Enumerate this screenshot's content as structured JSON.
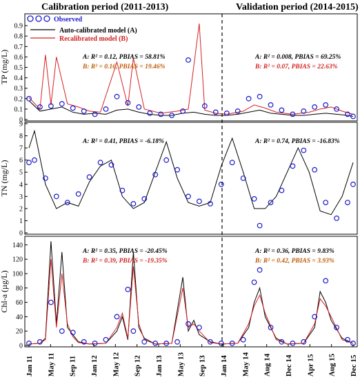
{
  "title_left": "Calibration period (2011-2013)",
  "title_right": "Validation period (2014-2015)",
  "legend": {
    "observed": "Observed",
    "auto": "Auto-calibrated model (A)",
    "recal": "Recalibrated model (B)"
  },
  "colors": {
    "observed": "#1a1acc",
    "auto": "#000000",
    "recal": "#d42020"
  },
  "x_ticks": [
    "Jan 11",
    "May 11",
    "Sep 11",
    "Jan 12",
    "May 12",
    "Sep 12",
    "Jan 13",
    "May 13",
    "Sep 13",
    "Jan 14",
    "May 14",
    "Aug 14",
    "Dec 14",
    "Apr 15",
    "Aug 15",
    "Dec 15"
  ],
  "panels": {
    "tp": {
      "ylabel": "TP (mg/L)",
      "ylim": [
        0,
        1.0
      ],
      "yticks": [
        "0",
        "0.1",
        "0.2",
        "0.3",
        "0.4",
        "0.5",
        "0.6",
        "0.7",
        "0.8",
        "0.9"
      ],
      "cal_a": "A: R² = 0.12, PBIAS = 58.81%",
      "cal_b": "B: R² = 0.16, PBIAS = 19.46%",
      "val_a": "A: R² = 0.008, PBIAS = 69.25%",
      "val_b": "B: R² = 0.07, PBIAS = 22.63%"
    },
    "tn": {
      "ylabel": "TN (mg/L)",
      "ylim": [
        0,
        9
      ],
      "yticks": [
        "0",
        "1",
        "2",
        "3",
        "4",
        "5",
        "6",
        "7",
        "8",
        "9"
      ],
      "cal_a": "A: R² = 0.41, PBIAS = -6.18%",
      "val_a": "A: R² = 0.74, PBIAS = -16.83%"
    },
    "chla": {
      "ylabel": "Chl-a (µg/L)",
      "ylim": [
        0,
        150
      ],
      "yticks": [
        "0",
        "20",
        "40",
        "60",
        "80",
        "100",
        "120",
        "140"
      ],
      "cal_a": "A: R² = 0.35, PBIAS = -20.45%",
      "cal_b": "B: R² = 0.39, PBIAS = -19.35%",
      "val_a": "A: R² = 0.36, PBIAS = 9.83%",
      "val_b": "B: R² = 0.42, PBIAS = 3.93%"
    }
  },
  "chart_data": [
    {
      "type": "line",
      "title": "Calibration period (2011-2013) / Validation period (2014-2015)",
      "ylabel": "TP (mg/L)",
      "ylim": [
        0,
        1.0
      ],
      "x_range": [
        "2011-01",
        "2015-12"
      ],
      "period_split": "2014-01",
      "series": [
        {
          "name": "Observed",
          "kind": "scatter",
          "x": [
            "2011-01",
            "2011-03",
            "2011-05",
            "2011-07",
            "2011-09",
            "2011-11",
            "2012-01",
            "2012-03",
            "2012-05",
            "2012-07",
            "2012-09",
            "2012-11",
            "2013-01",
            "2013-03",
            "2013-05",
            "2013-06",
            "2013-09",
            "2013-11",
            "2014-01",
            "2014-03",
            "2014-05",
            "2014-07",
            "2014-09",
            "2014-11",
            "2015-01",
            "2015-03",
            "2015-05",
            "2015-07",
            "2015-09",
            "2015-11",
            "2015-12"
          ],
          "y": [
            0.2,
            0.12,
            0.13,
            0.15,
            0.11,
            0.08,
            0.05,
            0.1,
            0.22,
            0.16,
            0.12,
            0.06,
            0.05,
            0.04,
            0.08,
            0.57,
            0.13,
            0.07,
            0.06,
            0.08,
            0.2,
            0.22,
            0.14,
            0.09,
            0.05,
            0.08,
            0.12,
            0.14,
            0.1,
            0.05,
            0.03
          ]
        },
        {
          "name": "Auto-calibrated model (A)",
          "kind": "line",
          "x": [
            "2011-01",
            "2011-03",
            "2011-05",
            "2011-07",
            "2011-09",
            "2011-11",
            "2012-01",
            "2012-03",
            "2012-05",
            "2012-07",
            "2012-09",
            "2012-11",
            "2013-01",
            "2013-03",
            "2013-05",
            "2013-07",
            "2013-09",
            "2013-11",
            "2014-01",
            "2014-03",
            "2014-05",
            "2014-07",
            "2014-09",
            "2014-11",
            "2015-01",
            "2015-03",
            "2015-05",
            "2015-07",
            "2015-09",
            "2015-11",
            "2015-12"
          ],
          "y": [
            0.18,
            0.08,
            0.1,
            0.12,
            0.07,
            0.05,
            0.06,
            0.05,
            0.09,
            0.1,
            0.07,
            0.05,
            0.04,
            0.04,
            0.06,
            0.07,
            0.05,
            0.04,
            0.04,
            0.05,
            0.07,
            0.09,
            0.06,
            0.05,
            0.04,
            0.04,
            0.05,
            0.06,
            0.05,
            0.04,
            0.03
          ]
        },
        {
          "name": "Recalibrated model (B)",
          "kind": "line",
          "x": [
            "2011-01",
            "2011-03",
            "2011-04",
            "2011-05",
            "2011-06",
            "2011-08",
            "2011-10",
            "2011-12",
            "2012-02",
            "2012-05",
            "2012-07",
            "2012-08",
            "2012-10",
            "2013-01",
            "2013-04",
            "2013-06",
            "2013-08",
            "2013-09",
            "2013-11",
            "2014-01",
            "2014-04",
            "2014-06",
            "2014-08",
            "2014-10",
            "2015-01",
            "2015-04",
            "2015-06",
            "2015-08",
            "2015-10",
            "2015-12"
          ],
          "y": [
            0.21,
            0.1,
            0.62,
            0.14,
            0.6,
            0.15,
            0.12,
            0.08,
            0.07,
            0.55,
            0.13,
            0.59,
            0.1,
            0.06,
            0.08,
            0.1,
            0.92,
            0.09,
            0.06,
            0.05,
            0.08,
            0.14,
            0.11,
            0.07,
            0.05,
            0.07,
            0.1,
            0.12,
            0.08,
            0.05
          ]
        }
      ]
    },
    {
      "type": "line",
      "ylabel": "TN (mg/L)",
      "ylim": [
        0,
        9
      ],
      "x_range": [
        "2011-01",
        "2015-12"
      ],
      "series": [
        {
          "name": "Observed",
          "kind": "scatter",
          "x": [
            "2011-01",
            "2011-02",
            "2011-04",
            "2011-06",
            "2011-08",
            "2011-10",
            "2011-12",
            "2012-02",
            "2012-04",
            "2012-06",
            "2012-08",
            "2012-10",
            "2012-12",
            "2013-02",
            "2013-04",
            "2013-06",
            "2013-08",
            "2013-10",
            "2013-12",
            "2014-02",
            "2014-04",
            "2014-06",
            "2014-07",
            "2014-09",
            "2014-11",
            "2015-01",
            "2015-03",
            "2015-05",
            "2015-07",
            "2015-09",
            "2015-11",
            "2015-12"
          ],
          "y": [
            5.8,
            6.0,
            4.5,
            3.0,
            2.5,
            3.2,
            4.6,
            5.8,
            5.6,
            3.5,
            2.4,
            2.8,
            4.8,
            6.0,
            5.2,
            3.0,
            2.6,
            2.4,
            4.0,
            5.8,
            4.5,
            2.8,
            0.6,
            2.5,
            3.5,
            5.5,
            6.8,
            5.2,
            2.5,
            1.2,
            2.5,
            4.0
          ]
        },
        {
          "name": "Auto-calibrated model (A)",
          "kind": "line",
          "x": [
            "2011-01",
            "2011-02",
            "2011-04",
            "2011-06",
            "2011-08",
            "2011-10",
            "2011-12",
            "2012-02",
            "2012-04",
            "2012-06",
            "2012-08",
            "2012-10",
            "2012-12",
            "2013-02",
            "2013-04",
            "2013-06",
            "2013-08",
            "2013-10",
            "2013-12",
            "2014-02",
            "2014-04",
            "2014-06",
            "2014-08",
            "2014-10",
            "2014-12",
            "2015-02",
            "2015-04",
            "2015-06",
            "2015-08",
            "2015-10",
            "2015-12"
          ],
          "y": [
            7.0,
            8.4,
            4.0,
            2.0,
            2.5,
            2.2,
            4.2,
            5.5,
            6.0,
            3.0,
            2.0,
            2.5,
            5.0,
            7.5,
            4.5,
            2.5,
            2.2,
            2.5,
            5.5,
            7.8,
            5.0,
            2.0,
            2.0,
            3.0,
            5.0,
            7.0,
            5.0,
            1.8,
            1.5,
            3.0,
            5.8
          ]
        }
      ]
    },
    {
      "type": "line",
      "ylabel": "Chl-a (µg/L)",
      "ylim": [
        0,
        150
      ],
      "x_range": [
        "2011-01",
        "2015-12"
      ],
      "series": [
        {
          "name": "Observed",
          "kind": "scatter",
          "x": [
            "2011-01",
            "2011-03",
            "2011-05",
            "2011-07",
            "2011-09",
            "2011-11",
            "2012-01",
            "2012-03",
            "2012-05",
            "2012-07",
            "2012-08",
            "2012-10",
            "2012-12",
            "2013-02",
            "2013-04",
            "2013-06",
            "2013-08",
            "2013-10",
            "2013-12",
            "2014-02",
            "2014-04",
            "2014-06",
            "2014-07",
            "2014-09",
            "2014-11",
            "2015-01",
            "2015-03",
            "2015-05",
            "2015-07",
            "2015-09",
            "2015-11",
            "2015-12"
          ],
          "y": [
            3,
            5,
            60,
            20,
            18,
            5,
            3,
            8,
            40,
            78,
            20,
            5,
            3,
            3,
            5,
            30,
            25,
            5,
            3,
            3,
            8,
            88,
            105,
            25,
            5,
            3,
            5,
            40,
            90,
            25,
            8,
            3
          ]
        },
        {
          "name": "Auto-calibrated model (A)",
          "kind": "line",
          "x": [
            "2011-01",
            "2011-03",
            "2011-04",
            "2011-05",
            "2011-06",
            "2011-07",
            "2011-08",
            "2011-09",
            "2011-10",
            "2011-12",
            "2012-03",
            "2012-05",
            "2012-06",
            "2012-07",
            "2012-08",
            "2012-09",
            "2012-10",
            "2012-12",
            "2013-03",
            "2013-05",
            "2013-06",
            "2013-07",
            "2013-08",
            "2013-10",
            "2013-12",
            "2014-03",
            "2014-05",
            "2014-06",
            "2014-07",
            "2014-08",
            "2014-10",
            "2014-12",
            "2015-03",
            "2015-05",
            "2015-06",
            "2015-07",
            "2015-08",
            "2015-10",
            "2015-12"
          ],
          "y": [
            2,
            3,
            10,
            145,
            30,
            130,
            25,
            15,
            5,
            2,
            3,
            20,
            40,
            8,
            130,
            25,
            10,
            2,
            3,
            95,
            20,
            35,
            15,
            5,
            2,
            3,
            25,
            60,
            80,
            40,
            10,
            2,
            3,
            25,
            75,
            60,
            35,
            10,
            3
          ]
        },
        {
          "name": "Recalibrated model (B)",
          "kind": "line",
          "x": [
            "2011-01",
            "2011-03",
            "2011-04",
            "2011-05",
            "2011-06",
            "2011-07",
            "2011-08",
            "2011-09",
            "2011-10",
            "2011-12",
            "2012-03",
            "2012-05",
            "2012-06",
            "2012-07",
            "2012-08",
            "2012-09",
            "2012-10",
            "2012-12",
            "2013-03",
            "2013-05",
            "2013-06",
            "2013-07",
            "2013-08",
            "2013-10",
            "2013-12",
            "2014-03",
            "2014-05",
            "2014-06",
            "2014-07",
            "2014-08",
            "2014-10",
            "2014-12",
            "2015-03",
            "2015-05",
            "2015-06",
            "2015-07",
            "2015-08",
            "2015-10",
            "2015-12"
          ],
          "y": [
            2,
            3,
            8,
            120,
            25,
            100,
            30,
            12,
            4,
            2,
            3,
            25,
            45,
            10,
            110,
            30,
            8,
            2,
            3,
            80,
            25,
            30,
            20,
            4,
            2,
            3,
            30,
            55,
            70,
            45,
            8,
            2,
            3,
            30,
            65,
            55,
            40,
            8,
            3
          ]
        }
      ]
    }
  ]
}
